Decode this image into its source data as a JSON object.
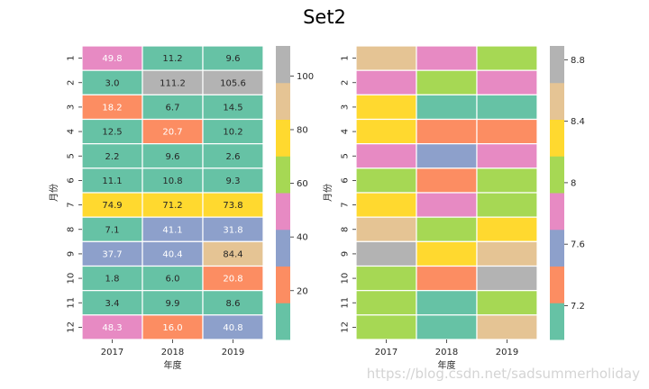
{
  "chart_data": [
    {
      "type": "heatmap",
      "title": "Set2",
      "xlabel": "年度",
      "ylabel": "月份",
      "x_categories": [
        "2017",
        "2018",
        "2019"
      ],
      "y_categories": [
        "1",
        "2",
        "3",
        "4",
        "5",
        "6",
        "7",
        "8",
        "9",
        "10",
        "11",
        "12"
      ],
      "annotated": true,
      "values": [
        [
          49.8,
          11.2,
          9.6
        ],
        [
          3.0,
          111.2,
          105.6
        ],
        [
          18.2,
          6.7,
          14.5
        ],
        [
          12.5,
          20.7,
          10.2
        ],
        [
          2.2,
          9.6,
          2.6
        ],
        [
          11.1,
          10.8,
          9.3
        ],
        [
          74.9,
          71.2,
          73.8
        ],
        [
          7.1,
          41.1,
          31.8
        ],
        [
          37.7,
          40.4,
          84.4
        ],
        [
          1.8,
          6.0,
          20.8
        ],
        [
          3.4,
          9.9,
          8.6
        ],
        [
          48.3,
          16.0,
          40.8
        ]
      ],
      "colormap": "Set2",
      "colorbar": {
        "range": [
          1.8,
          111.2
        ],
        "ticks": [
          20,
          40,
          60,
          80,
          100
        ]
      }
    },
    {
      "type": "heatmap",
      "title": "",
      "xlabel": "年度",
      "ylabel": "月份",
      "x_categories": [
        "2017",
        "2018",
        "2019"
      ],
      "y_categories": [
        "1",
        "2",
        "3",
        "4",
        "5",
        "6",
        "7",
        "8",
        "9",
        "10",
        "11",
        "12"
      ],
      "annotated": false,
      "values_note": "values estimated from color bins (no annotations shown)",
      "values": [
        [
          8.54,
          7.82,
          8.06
        ],
        [
          7.82,
          8.06,
          7.82
        ],
        [
          8.3,
          7.1,
          7.1
        ],
        [
          8.3,
          7.34,
          7.34
        ],
        [
          7.82,
          7.58,
          7.82
        ],
        [
          8.06,
          7.34,
          8.06
        ],
        [
          8.3,
          7.82,
          8.06
        ],
        [
          8.54,
          8.06,
          8.3
        ],
        [
          8.89,
          8.3,
          8.54
        ],
        [
          8.06,
          7.34,
          8.77
        ],
        [
          8.06,
          7.1,
          8.06
        ],
        [
          8.06,
          6.98,
          8.54
        ]
      ],
      "colormap": "Set2",
      "colorbar": {
        "range": [
          6.98,
          8.89
        ],
        "ticks": [
          7.2,
          7.6,
          8.0,
          8.4,
          8.8
        ]
      }
    }
  ],
  "palette": [
    "#66c2a5",
    "#fc8d62",
    "#8da0cb",
    "#e78ac3",
    "#a6d854",
    "#ffd92f",
    "#e5c494",
    "#b3b3b3"
  ],
  "text_colors": {
    "dark": "#262626",
    "light": "#ffffff"
  },
  "watermark": "https://blog.csdn.net/sadsummerholiday"
}
